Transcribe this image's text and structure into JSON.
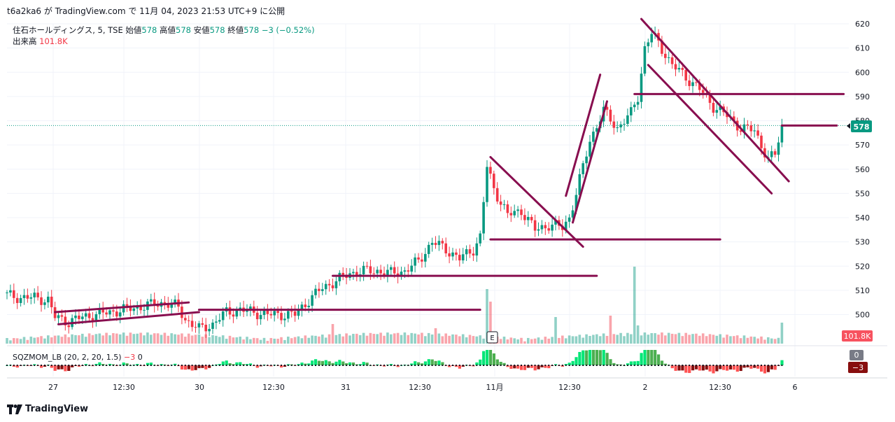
{
  "header": {
    "text": "t6a2ka6 が TradingView.com で 11月 04, 2023 21:53 UTC+9 に公開"
  },
  "legend": {
    "symbol": "住石ホールディングス, 5, TSE",
    "open_label": "始値",
    "open": "578",
    "high_label": "高値",
    "high": "578",
    "low_label": "安値",
    "low": "578",
    "close_label": "終値",
    "close": "578",
    "change": "−3 (−0.52%)"
  },
  "volume_legend": {
    "label": "出来高",
    "value": "101.8K"
  },
  "indicator_legend": {
    "label": "SQZMOM_LB (20, 2, 20, 1.5)",
    "v1": "−3",
    "v2": "0"
  },
  "footer": {
    "brand": "TradingView"
  },
  "badges": {
    "price": "578",
    "volume": "101.8K",
    "sqz_zero": "0",
    "sqz_val": "−3",
    "event": "E"
  },
  "colors": {
    "up": "#089981",
    "down": "#f23645",
    "trend": "#880e4f",
    "sqz_lime": "#00e676",
    "sqz_green": "#4caf50",
    "sqz_red": "#ff5252",
    "sqz_maroon": "#880e0e"
  },
  "chart_data": {
    "type": "candlestick",
    "y_ticks": [
      500,
      510,
      520,
      530,
      540,
      550,
      560,
      570,
      580,
      590,
      600,
      610,
      620
    ],
    "ylim": [
      491.5,
      623
    ],
    "x_labels": [
      "27",
      "12:30",
      "30",
      "12:30",
      "31",
      "12:30",
      "11月",
      "12:30",
      "2",
      "12:30",
      "6"
    ],
    "last_price": 578,
    "volume_last": "101.8K",
    "price_path": [
      [
        0,
        508
      ],
      [
        4,
        507
      ],
      [
        8,
        507
      ],
      [
        12,
        506
      ],
      [
        14,
        499
      ],
      [
        18,
        497
      ],
      [
        22,
        499
      ],
      [
        26,
        500
      ],
      [
        30,
        501
      ],
      [
        34,
        502
      ],
      [
        38,
        503
      ],
      [
        42,
        504
      ],
      [
        46,
        505
      ],
      [
        50,
        503
      ],
      [
        52,
        498
      ],
      [
        56,
        494
      ],
      [
        60,
        496
      ],
      [
        64,
        501
      ],
      [
        68,
        502
      ],
      [
        72,
        501
      ],
      [
        76,
        500
      ],
      [
        80,
        500
      ],
      [
        84,
        500
      ],
      [
        88,
        506
      ],
      [
        92,
        511
      ],
      [
        96,
        514
      ],
      [
        100,
        517
      ],
      [
        104,
        518
      ],
      [
        108,
        518
      ],
      [
        112,
        517
      ],
      [
        116,
        518
      ],
      [
        120,
        522
      ],
      [
        124,
        530
      ],
      [
        128,
        527
      ],
      [
        132,
        523
      ],
      [
        136,
        527
      ],
      [
        138,
        532
      ],
      [
        140,
        561
      ],
      [
        142,
        552
      ],
      [
        146,
        541
      ],
      [
        150,
        543
      ],
      [
        154,
        535
      ],
      [
        158,
        537
      ],
      [
        162,
        536
      ],
      [
        164,
        540
      ],
      [
        166,
        550
      ],
      [
        170,
        572
      ],
      [
        174,
        584
      ],
      [
        178,
        577
      ],
      [
        182,
        583
      ],
      [
        184,
        590
      ],
      [
        186,
        610
      ],
      [
        188,
        616
      ],
      [
        190,
        612
      ],
      [
        194,
        603
      ],
      [
        198,
        598
      ],
      [
        202,
        593
      ],
      [
        206,
        586
      ],
      [
        210,
        582
      ],
      [
        214,
        577
      ],
      [
        218,
        576
      ],
      [
        222,
        564
      ],
      [
        224,
        566
      ],
      [
        226,
        578
      ]
    ],
    "trend_lines": [
      {
        "from": [
          14,
          501
        ],
        "to": [
          53,
          505
        ]
      },
      {
        "from": [
          15,
          496
        ],
        "to": [
          56,
          501
        ]
      },
      {
        "from": [
          56,
          502
        ],
        "to": [
          138,
          502
        ]
      },
      {
        "from": [
          95,
          516
        ],
        "to": [
          172,
          516
        ]
      },
      {
        "from": [
          141,
          531
        ],
        "to": [
          208,
          531
        ]
      },
      {
        "from": [
          141,
          565
        ],
        "to": [
          168,
          528
        ]
      },
      {
        "from": [
          163,
          549
        ],
        "to": [
          173,
          599
        ]
      },
      {
        "from": [
          165,
          538
        ],
        "to": [
          175,
          588
        ]
      },
      {
        "from": [
          183,
          591
        ],
        "to": [
          244,
          591
        ]
      },
      {
        "from": [
          185,
          622
        ],
        "to": [
          228,
          555
        ]
      },
      {
        "from": [
          187,
          603
        ],
        "to": [
          223,
          550
        ]
      },
      {
        "from": [
          226,
          578
        ],
        "to": [
          242,
          578
        ]
      }
    ],
    "volume": {
      "count": 227
    },
    "squeeze_momentum": {
      "params": "20, 2, 20, 1.5"
    }
  }
}
